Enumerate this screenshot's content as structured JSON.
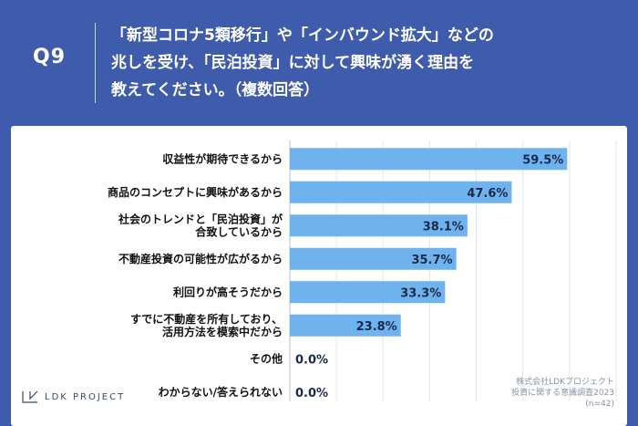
{
  "header": {
    "qnum": "Q9",
    "question": "「新型コロナ5類移行」や「インバウンド拡大」などの\n兆しを受け、「民泊投資」に対して興味が湧く理由を\n教えてください。（複数回答）"
  },
  "logo": {
    "text": "LDK PROJECT"
  },
  "source": {
    "line1": "株式会社LDKプロジェクト",
    "line2": "投資に関する意識調査2023",
    "line3": "(n=42)"
  },
  "colors": {
    "bar": "#6eb3ee",
    "background": "#3f5bab",
    "card": "#ffffff"
  },
  "chart_data": {
    "type": "bar",
    "orientation": "horizontal",
    "xlim": [
      0,
      70
    ],
    "grid": true,
    "categories": [
      "収益性が期待できるから",
      "商品のコンセプトに興味があるから",
      "社会のトレンドと「民泊投資」が\n合致しているから",
      "不動産投資の可能性が広がるから",
      "利回りが高そうだから",
      "すでに不動産を所有しており、\n活用方法を模索中だから",
      "その他",
      "わからない/答えられない"
    ],
    "values": [
      59.5,
      47.6,
      38.1,
      35.7,
      33.3,
      23.8,
      0.0,
      0.0
    ],
    "value_labels": [
      "59.5%",
      "47.6%",
      "38.1%",
      "35.7%",
      "33.3%",
      "23.8%",
      "0.0%",
      "0.0%"
    ]
  }
}
